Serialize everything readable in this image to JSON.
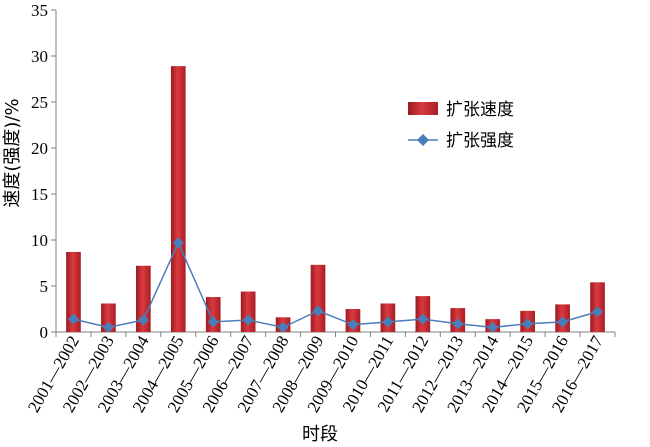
{
  "chart_data": {
    "type": "bar",
    "xlabel": "时段",
    "ylabel": "速度(强度)/%",
    "ylim": [
      0,
      35
    ],
    "yticks": [
      0,
      5,
      10,
      15,
      20,
      25,
      30,
      35
    ],
    "categories": [
      "2001—2002",
      "2002—2003",
      "2003—2004",
      "2004—2005",
      "2005—2006",
      "2006—2007",
      "2007—2008",
      "2008—2009",
      "2009—2010",
      "2010—2011",
      "2011—2012",
      "2012—2013",
      "2013—2014",
      "2014—2015",
      "2015—2016",
      "2016—2017"
    ],
    "series": [
      {
        "name": "扩张速度",
        "type": "bar",
        "color": "#c0272d",
        "values": [
          8.7,
          3.1,
          7.2,
          28.9,
          3.8,
          4.4,
          1.6,
          7.3,
          2.5,
          3.1,
          3.9,
          2.6,
          1.4,
          2.3,
          3.0,
          5.4
        ]
      },
      {
        "name": "扩张强度",
        "type": "line",
        "color": "#4a7ebb",
        "marker": "diamond",
        "values": [
          1.4,
          0.5,
          1.3,
          9.7,
          1.1,
          1.3,
          0.5,
          2.3,
          0.8,
          1.1,
          1.4,
          0.9,
          0.5,
          0.9,
          1.1,
          2.2
        ]
      }
    ],
    "legend_position": "right",
    "grid": false
  }
}
